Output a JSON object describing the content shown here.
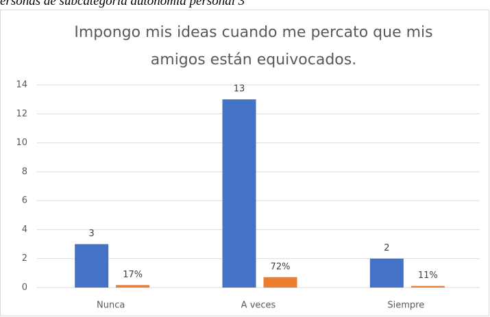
{
  "caption": "ersonas de subcategoría autonomía personal 3",
  "chart_data": {
    "type": "bar",
    "title": [
      "Impongo mis ideas cuando me percato que mis",
      "amigos están equivocados."
    ],
    "categories": [
      "Nunca",
      "A veces",
      "Siempre"
    ],
    "series": [
      {
        "color": "#4472c4",
        "values": [
          3,
          13,
          2
        ]
      },
      {
        "color": "#ed7d31",
        "values": [
          0.17,
          0.72,
          0.11
        ],
        "value_labels": [
          "17%",
          "72%",
          "11%"
        ]
      }
    ],
    "ylim": [
      0,
      14
    ],
    "yticks": [
      0,
      2,
      4,
      6,
      8,
      10,
      12,
      14
    ],
    "grid": true
  }
}
